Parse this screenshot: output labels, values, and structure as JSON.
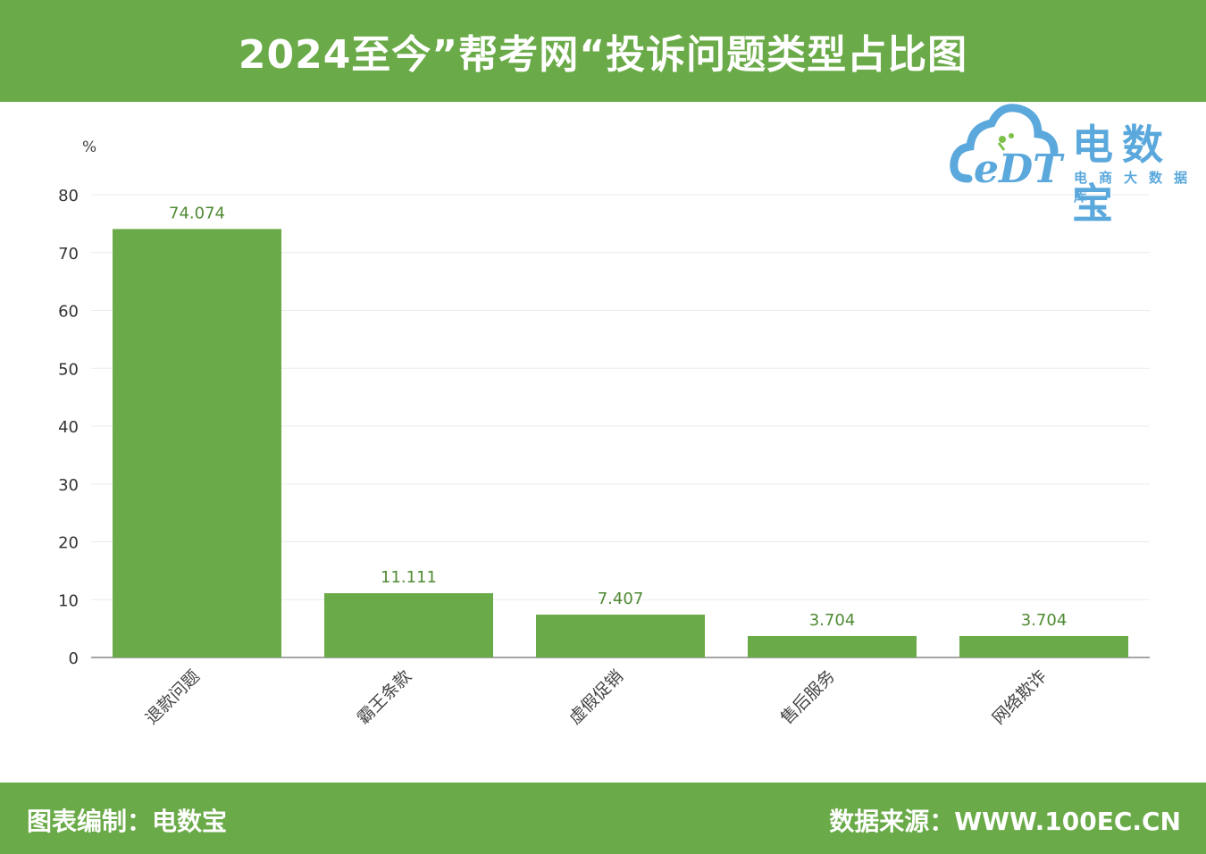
{
  "header": {
    "title": "2024至今”帮考网“投诉问题类型占比图"
  },
  "footer": {
    "left": "图表编制：电数宝",
    "right": "数据来源：WWW.100EC.CN"
  },
  "logo": {
    "mark": "eDT",
    "name_cn": "电数宝",
    "sub": "电商大数据库",
    "icon": "cloud-logo-icon"
  },
  "colors": {
    "banner": "#6aaa48",
    "bar": "#6aaa48",
    "value_label": "#4f8a33",
    "logo": "#5aa8dc"
  },
  "chart_data": {
    "type": "bar",
    "title": "",
    "xlabel": "",
    "ylabel": "%",
    "ylim": [
      0,
      80
    ],
    "yticks": [
      0,
      10,
      20,
      30,
      40,
      50,
      60,
      70,
      80
    ],
    "grid": true,
    "categories": [
      "退款问题",
      "霸王条款",
      "虚假促销",
      "售后服务",
      "网络欺诈"
    ],
    "values": [
      74.074,
      11.111,
      7.407,
      3.704,
      3.704
    ],
    "value_labels": [
      "74.074",
      "11.111",
      "7.407",
      "3.704",
      "3.704"
    ]
  }
}
